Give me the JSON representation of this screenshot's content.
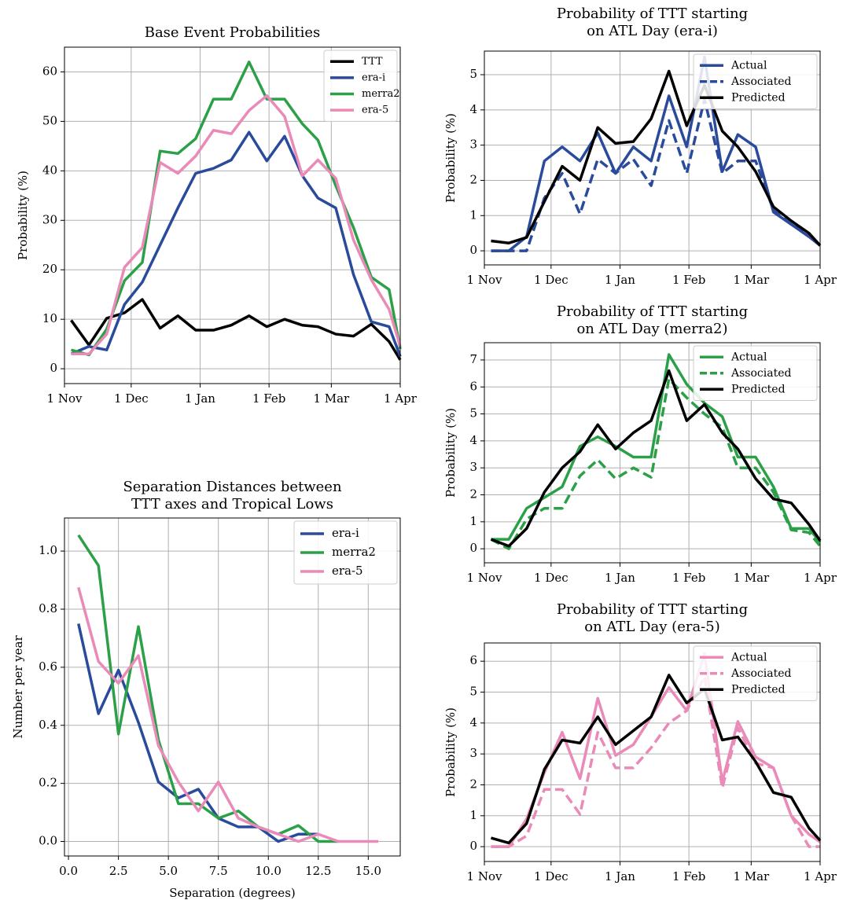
{
  "chart_data": [
    {
      "type": "line",
      "title": "Base Event Probabilities",
      "ylabel": "Probability (%)",
      "x": [
        3,
        11,
        19,
        27,
        35,
        43,
        51,
        59,
        67,
        75,
        83,
        91,
        99,
        107,
        114,
        122,
        130,
        138,
        146,
        151
      ],
      "xlim": [
        0,
        151
      ],
      "xticks": [
        {
          "value": 0,
          "label": "1 Nov"
        },
        {
          "value": 30,
          "label": "1 Dec"
        },
        {
          "value": 61,
          "label": "1 Jan"
        },
        {
          "value": 92,
          "label": "1 Feb"
        },
        {
          "value": 120,
          "label": "1 Mar"
        },
        {
          "value": 151,
          "label": "1 Apr"
        }
      ],
      "ylim": [
        -3,
        65
      ],
      "yticks": [
        0,
        10,
        20,
        30,
        40,
        50,
        60
      ],
      "grid": true,
      "legend": "upper right",
      "series": [
        {
          "name": "TTT",
          "color": "#000000",
          "linestyle": "solid",
          "values": [
            9.8,
            4.8,
            10.2,
            11.3,
            14,
            8.2,
            10.7,
            7.8,
            7.8,
            8.8,
            10.7,
            8.5,
            10,
            8.8,
            8.5,
            7,
            6.6,
            9,
            5.5,
            1.8
          ]
        },
        {
          "name": "era-i",
          "color": "#2a4b9b",
          "linestyle": "solid",
          "values": [
            3,
            4.5,
            3.8,
            13,
            17.5,
            25,
            32.5,
            39.5,
            40.5,
            42.2,
            47.8,
            42,
            47,
            39,
            34.5,
            32.5,
            19,
            9.5,
            8.5,
            2.5
          ]
        },
        {
          "name": "merra2",
          "color": "#2ca048",
          "linestyle": "solid",
          "values": [
            3.8,
            2.8,
            8,
            17.8,
            21.5,
            44,
            43.5,
            46.5,
            54.5,
            54.5,
            62,
            54.5,
            54.5,
            49.5,
            46.2,
            37,
            28.5,
            18.5,
            16,
            4
          ]
        },
        {
          "name": "era-5",
          "color": "#e98ab8",
          "linestyle": "solid",
          "values": [
            3,
            3,
            7,
            20.5,
            24.5,
            41.7,
            39.5,
            43,
            48.2,
            47.5,
            52.2,
            55.2,
            51,
            39,
            42.2,
            38.5,
            26,
            18,
            12,
            4.5
          ]
        }
      ]
    },
    {
      "type": "line",
      "title": [
        "Separation Distances between",
        "TTT axes and Tropical Lows"
      ],
      "xlabel": "Separation (degrees)",
      "ylabel": "Number per year",
      "x": [
        0.5,
        1.5,
        2.5,
        3.5,
        4.5,
        5.5,
        6.5,
        7.5,
        8.5,
        9.5,
        10.5,
        11.5,
        12.5,
        13.5,
        14.5,
        15.5
      ],
      "xlim": [
        -0.2,
        16.6
      ],
      "xticks": [
        {
          "value": 0,
          "label": "0.0"
        },
        2.5,
        {
          "value": 5,
          "label": "5.0"
        },
        7.5,
        {
          "value": 10,
          "label": "10.0"
        },
        12.5,
        {
          "value": 15,
          "label": "15.0"
        }
      ],
      "ylim": [
        -0.05,
        1.114
      ],
      "yticks": [
        {
          "value": 0,
          "label": "0.0"
        },
        0.2,
        0.4,
        0.6,
        0.8,
        {
          "value": 1,
          "label": "1.0"
        }
      ],
      "grid": true,
      "legend": "upper right",
      "series": [
        {
          "name": "era-i",
          "color": "#2a4b9b",
          "linestyle": "solid",
          "values": [
            0.75,
            0.44,
            0.59,
            0.41,
            0.205,
            0.15,
            0.18,
            0.08,
            0.05,
            0.05,
            0.0,
            0.025,
            0.025,
            null,
            null,
            null
          ]
        },
        {
          "name": "merra2",
          "color": "#2ca048",
          "linestyle": "solid",
          "values": [
            1.055,
            0.95,
            0.37,
            0.74,
            0.35,
            0.13,
            0.13,
            0.08,
            0.105,
            0.05,
            0.025,
            0.055,
            0.0,
            0.0,
            null,
            null
          ]
        },
        {
          "name": "era-5",
          "color": "#e98ab8",
          "linestyle": "solid",
          "values": [
            0.875,
            0.62,
            0.545,
            0.64,
            0.33,
            0.205,
            0.105,
            0.205,
            0.08,
            0.05,
            0.025,
            0.0,
            0.025,
            0.0,
            0.0,
            0.0
          ]
        }
      ]
    },
    {
      "type": "line",
      "title": [
        "Probability of TTT starting",
        "on ATL Day (era-i)"
      ],
      "ylabel": "Probability (%)",
      "x": [
        3,
        11,
        19,
        27,
        35,
        43,
        51,
        59,
        67,
        75,
        83,
        91,
        99,
        107,
        114,
        122,
        130,
        138,
        146,
        151
      ],
      "xlim": [
        0,
        151
      ],
      "xticks": [
        {
          "value": 0,
          "label": "1 Nov"
        },
        {
          "value": 30,
          "label": "1 Dec"
        },
        {
          "value": 61,
          "label": "1 Jan"
        },
        {
          "value": 92,
          "label": "1 Feb"
        },
        {
          "value": 120,
          "label": "1 Mar"
        },
        {
          "value": 151,
          "label": "1 Apr"
        }
      ],
      "ylim": [
        -0.4,
        5.67
      ],
      "yticks": [
        0,
        1,
        2,
        3,
        4,
        5
      ],
      "grid": true,
      "legend": "upper right",
      "series": [
        {
          "name": "Actual",
          "color": "#2a4b9b",
          "linestyle": "solid",
          "values": [
            0,
            0,
            0.4,
            2.55,
            2.95,
            2.55,
            3.35,
            2.2,
            2.95,
            2.55,
            4.4,
            2.95,
            5.5,
            2.25,
            3.3,
            2.95,
            1.1,
            0.75,
            0.4,
            0.15
          ]
        },
        {
          "name": "Associated",
          "color": "#2a4b9b",
          "linestyle": "dashed",
          "values": [
            0,
            0,
            0,
            1.5,
            2.2,
            1.05,
            2.6,
            2.2,
            2.6,
            1.85,
            3.7,
            2.2,
            4.3,
            2.2,
            2.55,
            2.55,
            1.15,
            0.75,
            0.45,
            0.15
          ]
        },
        {
          "name": "Predicted",
          "color": "#000000",
          "linestyle": "solid",
          "values": [
            0.28,
            0.22,
            0.38,
            1.4,
            2.4,
            2.0,
            3.5,
            3.05,
            3.1,
            3.75,
            5.1,
            3.55,
            4.7,
            3.4,
            2.95,
            2.25,
            1.25,
            0.85,
            0.5,
            0.15
          ]
        }
      ]
    },
    {
      "type": "line",
      "title": [
        "Probability of TTT starting",
        "on ATL Day (merra2)"
      ],
      "ylabel": "Probability (%)",
      "x": [
        3,
        11,
        19,
        27,
        35,
        43,
        51,
        59,
        67,
        75,
        83,
        91,
        99,
        107,
        114,
        122,
        130,
        138,
        146,
        151
      ],
      "xlim": [
        0,
        151
      ],
      "xticks": [
        {
          "value": 0,
          "label": "1 Nov"
        },
        {
          "value": 30,
          "label": "1 Dec"
        },
        {
          "value": 61,
          "label": "1 Jan"
        },
        {
          "value": 92,
          "label": "1 Feb"
        },
        {
          "value": 120,
          "label": "1 Mar"
        },
        {
          "value": 151,
          "label": "1 Apr"
        }
      ],
      "ylim": [
        -0.52,
        7.64
      ],
      "yticks": [
        0,
        1,
        2,
        3,
        4,
        5,
        6,
        7
      ],
      "grid": true,
      "legend": "upper right",
      "series": [
        {
          "name": "Actual",
          "color": "#2ca048",
          "linestyle": "solid",
          "values": [
            0.35,
            0.35,
            1.5,
            1.9,
            2.3,
            3.8,
            4.15,
            3.8,
            3.4,
            3.4,
            7.2,
            6.1,
            5.4,
            4.9,
            3.4,
            3.4,
            2.3,
            0.75,
            0.75,
            0.25
          ]
        },
        {
          "name": "Associated",
          "color": "#2ca048",
          "linestyle": "dashed",
          "values": [
            0.35,
            0.0,
            1.1,
            1.5,
            1.5,
            2.7,
            3.3,
            2.6,
            3.0,
            2.65,
            6.3,
            5.6,
            5.0,
            4.5,
            3.0,
            3.0,
            2.1,
            0.7,
            0.6,
            0.1
          ]
        },
        {
          "name": "Predicted",
          "color": "#000000",
          "linestyle": "solid",
          "values": [
            0.35,
            0.1,
            0.75,
            2.1,
            3.0,
            3.6,
            4.6,
            3.7,
            4.3,
            4.75,
            6.6,
            4.75,
            5.35,
            4.3,
            3.7,
            2.6,
            1.85,
            1.7,
            0.9,
            0.3
          ]
        }
      ]
    },
    {
      "type": "line",
      "title": [
        "Probability of TTT starting",
        "on ATL Day (era-5)"
      ],
      "ylabel": "Probability (%)",
      "x": [
        3,
        11,
        19,
        27,
        35,
        43,
        51,
        59,
        67,
        75,
        83,
        91,
        99,
        107,
        114,
        122,
        130,
        138,
        146,
        151
      ],
      "xlim": [
        0,
        151
      ],
      "xticks": [
        {
          "value": 0,
          "label": "1 Nov"
        },
        {
          "value": 30,
          "label": "1 Dec"
        },
        {
          "value": 61,
          "label": "1 Jan"
        },
        {
          "value": 92,
          "label": "1 Feb"
        },
        {
          "value": 120,
          "label": "1 Mar"
        },
        {
          "value": 151,
          "label": "1 Apr"
        }
      ],
      "ylim": [
        -0.48,
        6.59
      ],
      "yticks": [
        0,
        1,
        2,
        3,
        4,
        5,
        6
      ],
      "grid": true,
      "legend": "upper right",
      "series": [
        {
          "name": "Actual",
          "color": "#e98ab8",
          "linestyle": "solid",
          "values": [
            0,
            0,
            0.9,
            2.4,
            3.7,
            2.2,
            4.8,
            2.95,
            3.3,
            4.2,
            5.15,
            4.4,
            6.25,
            2.1,
            4.05,
            2.9,
            2.55,
            1.0,
            0.4,
            0.15
          ]
        },
        {
          "name": "Associated",
          "color": "#e98ab8",
          "linestyle": "dashed",
          "values": [
            0,
            0,
            0.35,
            1.85,
            1.85,
            1.05,
            3.7,
            2.55,
            2.55,
            3.2,
            4.0,
            4.4,
            5.5,
            1.9,
            3.85,
            2.7,
            2.55,
            1.0,
            0,
            0
          ]
        },
        {
          "name": "Predicted",
          "color": "#000000",
          "linestyle": "solid",
          "values": [
            0.28,
            0.12,
            0.75,
            2.5,
            3.45,
            3.35,
            4.2,
            3.3,
            3.75,
            4.2,
            5.55,
            4.65,
            5.1,
            3.45,
            3.55,
            2.75,
            1.75,
            1.6,
            0.6,
            0.2
          ]
        }
      ]
    }
  ]
}
